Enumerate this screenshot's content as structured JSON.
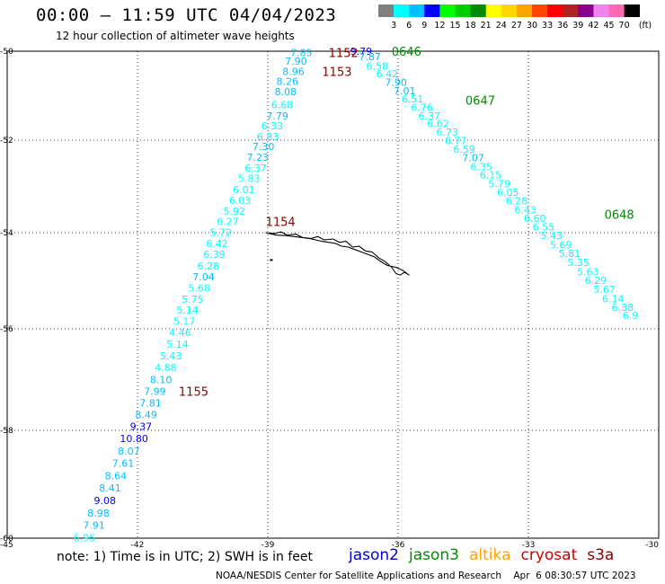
{
  "header": {
    "title": "00:00 – 11:59 UTC 04/04/2023",
    "subtitle": "12 hour collection of altimeter wave heights"
  },
  "colorbar": {
    "labels": [
      "3",
      "6",
      "9",
      "12",
      "15",
      "18",
      "21",
      "24",
      "27",
      "30",
      "33",
      "36",
      "39",
      "42",
      "45",
      "70"
    ],
    "unit": "(ft)",
    "colors": [
      "#808080",
      "#00ffff",
      "#00bfff",
      "#0000ff",
      "#00ff00",
      "#00cd00",
      "#008b00",
      "#ffff00",
      "#ffd700",
      "#ffa500",
      "#ff4500",
      "#ff0000",
      "#b22222",
      "#8b008b",
      "#ee82ee",
      "#ff69b4",
      "#000000"
    ]
  },
  "axes": {
    "lat_labels": [
      "-50",
      "-52",
      "-54",
      "-56",
      "-58",
      "-60"
    ],
    "lon_labels": [
      "-45",
      "-42",
      "-39",
      "-36",
      "-33",
      "-30"
    ]
  },
  "chart_data": {
    "type": "scatter",
    "lon_range": [
      -45,
      -30
    ],
    "lat_range": [
      -60,
      -50
    ],
    "track_west": [
      {
        "lat": -50.03,
        "lon": -38.23,
        "value": "7.85",
        "color": "#00bfff"
      },
      {
        "lat": -50.22,
        "lon": -38.35,
        "value": "7.90",
        "color": "#00bfff"
      },
      {
        "lat": -50.45,
        "lon": -38.41,
        "value": "8.96",
        "color": "#00bfff"
      },
      {
        "lat": -50.68,
        "lon": -38.55,
        "value": "8.26",
        "color": "#00bfff"
      },
      {
        "lat": -50.91,
        "lon": -38.59,
        "value": "8.08",
        "color": "#00bfff"
      },
      {
        "lat": -51.2,
        "lon": -38.67,
        "value": "6.68",
        "color": "#00ffff"
      },
      {
        "lat": -51.45,
        "lon": -38.78,
        "value": "7.79",
        "color": "#00bfff"
      },
      {
        "lat": -51.68,
        "lon": -38.9,
        "value": "6.33",
        "color": "#00ffff"
      },
      {
        "lat": -51.92,
        "lon": -39.0,
        "value": "6.83",
        "color": "#00ffff"
      },
      {
        "lat": -52.14,
        "lon": -39.1,
        "value": "7.30",
        "color": "#00bfff"
      },
      {
        "lat": -52.37,
        "lon": -39.23,
        "value": "7.23",
        "color": "#00bfff"
      },
      {
        "lat": -52.6,
        "lon": -39.28,
        "value": "6.37",
        "color": "#00ffff"
      },
      {
        "lat": -52.83,
        "lon": -39.43,
        "value": "5.83",
        "color": "#00ffff"
      },
      {
        "lat": -53.07,
        "lon": -39.55,
        "value": "6.01",
        "color": "#00ffff"
      },
      {
        "lat": -53.3,
        "lon": -39.64,
        "value": "6.03",
        "color": "#00ffff"
      },
      {
        "lat": -53.53,
        "lon": -39.77,
        "value": "5.92",
        "color": "#00ffff"
      },
      {
        "lat": -53.76,
        "lon": -39.92,
        "value": "6.27",
        "color": "#00ffff"
      },
      {
        "lat": -53.99,
        "lon": -40.08,
        "value": "5.72",
        "color": "#00ffff"
      },
      {
        "lat": -54.22,
        "lon": -40.17,
        "value": "6.42",
        "color": "#00ffff"
      },
      {
        "lat": -54.45,
        "lon": -40.23,
        "value": "6.39",
        "color": "#00ffff"
      },
      {
        "lat": -54.69,
        "lon": -40.37,
        "value": "6.28",
        "color": "#00ffff"
      },
      {
        "lat": -54.92,
        "lon": -40.48,
        "value": "7.04",
        "color": "#00bfff"
      },
      {
        "lat": -55.15,
        "lon": -40.58,
        "value": "5.68",
        "color": "#00ffff"
      },
      {
        "lat": -55.38,
        "lon": -40.73,
        "value": "5.75",
        "color": "#00ffff"
      },
      {
        "lat": -55.61,
        "lon": -40.85,
        "value": "5.14",
        "color": "#00ffff"
      },
      {
        "lat": -55.84,
        "lon": -40.92,
        "value": "5.17",
        "color": "#00ffff"
      },
      {
        "lat": -56.07,
        "lon": -41.02,
        "value": "4.46",
        "color": "#00ffff"
      },
      {
        "lat": -56.3,
        "lon": -41.08,
        "value": "5.14",
        "color": "#00ffff"
      },
      {
        "lat": -56.53,
        "lon": -41.23,
        "value": "5.43",
        "color": "#00ffff"
      },
      {
        "lat": -56.76,
        "lon": -41.35,
        "value": "4.88",
        "color": "#00ffff"
      },
      {
        "lat": -57.0,
        "lon": -41.46,
        "value": "8.10",
        "color": "#00bfff"
      },
      {
        "lat": -57.23,
        "lon": -41.6,
        "value": "7.99",
        "color": "#00bfff"
      },
      {
        "lat": -57.46,
        "lon": -41.7,
        "value": "7.81",
        "color": "#00bfff"
      },
      {
        "lat": -57.69,
        "lon": -41.8,
        "value": "8.49",
        "color": "#00bfff"
      },
      {
        "lat": -57.92,
        "lon": -41.92,
        "value": "9.37",
        "color": "#0000ff"
      },
      {
        "lat": -58.15,
        "lon": -42.08,
        "value": "10.80",
        "color": "#0000ff"
      },
      {
        "lat": -58.38,
        "lon": -42.2,
        "value": "8.07",
        "color": "#00bfff"
      },
      {
        "lat": -58.61,
        "lon": -42.33,
        "value": "7.61",
        "color": "#00bfff"
      },
      {
        "lat": -58.84,
        "lon": -42.5,
        "value": "8.64",
        "color": "#00bfff"
      },
      {
        "lat": -59.07,
        "lon": -42.63,
        "value": "8.41",
        "color": "#00bfff"
      },
      {
        "lat": -59.3,
        "lon": -42.75,
        "value": "9.08",
        "color": "#0000ff"
      },
      {
        "lat": -59.53,
        "lon": -42.9,
        "value": "8.98",
        "color": "#00bfff"
      },
      {
        "lat": -59.76,
        "lon": -43.0,
        "value": "7.91",
        "color": "#00bfff"
      },
      {
        "lat": -59.99,
        "lon": -43.22,
        "value": "6.95",
        "color": "#00ffff"
      }
    ],
    "track_east": [
      {
        "lat": -50.0,
        "lon": -36.85,
        "value": "9.79",
        "color": "#0000ff"
      },
      {
        "lat": -50.12,
        "lon": -36.65,
        "value": "7.87",
        "color": "#00bfff"
      },
      {
        "lat": -50.33,
        "lon": -36.48,
        "value": "6.58",
        "color": "#00ffff"
      },
      {
        "lat": -50.51,
        "lon": -36.25,
        "value": "6.42",
        "color": "#00ffff"
      },
      {
        "lat": -50.7,
        "lon": -36.05,
        "value": "7.90",
        "color": "#00bfff"
      },
      {
        "lat": -50.89,
        "lon": -35.85,
        "value": "7.01",
        "color": "#00bfff"
      },
      {
        "lat": -51.07,
        "lon": -35.67,
        "value": "6.51",
        "color": "#00ffff"
      },
      {
        "lat": -51.26,
        "lon": -35.45,
        "value": "6.76",
        "color": "#00ffff"
      },
      {
        "lat": -51.45,
        "lon": -35.28,
        "value": "6.37",
        "color": "#00ffff"
      },
      {
        "lat": -51.63,
        "lon": -35.08,
        "value": "6.62",
        "color": "#00ffff"
      },
      {
        "lat": -51.82,
        "lon": -34.87,
        "value": "6.73",
        "color": "#00ffff"
      },
      {
        "lat": -52.01,
        "lon": -34.67,
        "value": "6.77",
        "color": "#00ffff"
      },
      {
        "lat": -52.19,
        "lon": -34.48,
        "value": "6.59",
        "color": "#00ffff"
      },
      {
        "lat": -52.38,
        "lon": -34.27,
        "value": "7.07",
        "color": "#00bfff"
      },
      {
        "lat": -52.57,
        "lon": -34.08,
        "value": "6.35",
        "color": "#00ffff"
      },
      {
        "lat": -52.75,
        "lon": -33.87,
        "value": "6.15",
        "color": "#00ffff"
      },
      {
        "lat": -52.94,
        "lon": -33.67,
        "value": "5.79",
        "color": "#00ffff"
      },
      {
        "lat": -53.13,
        "lon": -33.47,
        "value": "6.05",
        "color": "#00ffff"
      },
      {
        "lat": -53.31,
        "lon": -33.27,
        "value": "6.28",
        "color": "#00ffff"
      },
      {
        "lat": -53.5,
        "lon": -33.07,
        "value": "6.43",
        "color": "#00ffff"
      },
      {
        "lat": -53.69,
        "lon": -32.85,
        "value": "6.60",
        "color": "#00ffff"
      },
      {
        "lat": -53.87,
        "lon": -32.65,
        "value": "6.55",
        "color": "#00ffff"
      },
      {
        "lat": -54.06,
        "lon": -32.47,
        "value": "5.43",
        "color": "#00ffff"
      },
      {
        "lat": -54.25,
        "lon": -32.25,
        "value": "5.69",
        "color": "#00ffff"
      },
      {
        "lat": -54.43,
        "lon": -32.05,
        "value": "5.81",
        "color": "#00ffff"
      },
      {
        "lat": -54.62,
        "lon": -31.85,
        "value": "5.35",
        "color": "#00ffff"
      },
      {
        "lat": -54.81,
        "lon": -31.63,
        "value": "5.63",
        "color": "#00ffff"
      },
      {
        "lat": -54.99,
        "lon": -31.45,
        "value": "6.29",
        "color": "#00ffff"
      },
      {
        "lat": -55.18,
        "lon": -31.25,
        "value": "5.67",
        "color": "#00ffff"
      },
      {
        "lat": -55.37,
        "lon": -31.05,
        "value": "6.14",
        "color": "#00ffff"
      },
      {
        "lat": -55.55,
        "lon": -30.83,
        "value": "6.38",
        "color": "#00ffff"
      },
      {
        "lat": -55.72,
        "lon": -30.65,
        "value": "6.9",
        "color": "#00ffff"
      }
    ],
    "time_labels": [
      {
        "lat": -50.03,
        "lon": -37.6,
        "text": "1152",
        "color": "#8b0000"
      },
      {
        "lat": -50.45,
        "lon": -37.75,
        "text": "1153",
        "color": "#8b0000"
      },
      {
        "lat": -53.76,
        "lon": -39.05,
        "text": "1154",
        "color": "#8b0000"
      },
      {
        "lat": -57.23,
        "lon": -41.05,
        "text": "1155",
        "color": "#8b0000"
      },
      {
        "lat": -50.0,
        "lon": -36.15,
        "text": "0646",
        "color": "#008b00"
      },
      {
        "lat": -51.1,
        "lon": -34.45,
        "text": "0647",
        "color": "#008b00"
      },
      {
        "lat": -53.6,
        "lon": -31.25,
        "text": "0648",
        "color": "#008b00"
      }
    ],
    "coastline": [
      [
        -39.05,
        -54.0
      ],
      [
        -38.85,
        -54.02
      ],
      [
        -38.7,
        -53.98
      ],
      [
        -38.55,
        -54.05
      ],
      [
        -38.35,
        -54.03
      ],
      [
        -38.2,
        -54.1
      ],
      [
        -38.0,
        -54.12
      ],
      [
        -37.85,
        -54.08
      ],
      [
        -37.7,
        -54.15
      ],
      [
        -37.5,
        -54.13
      ],
      [
        -37.35,
        -54.2
      ],
      [
        -37.2,
        -54.18
      ],
      [
        -37.05,
        -54.3
      ],
      [
        -36.9,
        -54.28
      ],
      [
        -36.75,
        -54.38
      ],
      [
        -36.6,
        -54.4
      ],
      [
        -36.45,
        -54.52
      ],
      [
        -36.3,
        -54.6
      ],
      [
        -36.15,
        -54.72
      ],
      [
        -36.05,
        -54.85
      ],
      [
        -35.95,
        -54.88
      ],
      [
        -35.85,
        -54.82
      ],
      [
        -35.75,
        -54.88
      ],
      [
        -35.9,
        -54.78
      ],
      [
        -36.05,
        -54.72
      ],
      [
        -36.25,
        -54.68
      ],
      [
        -36.4,
        -54.6
      ],
      [
        -36.55,
        -54.5
      ],
      [
        -36.7,
        -54.45
      ],
      [
        -36.85,
        -54.4
      ],
      [
        -37.0,
        -54.35
      ],
      [
        -37.15,
        -54.3
      ],
      [
        -37.3,
        -54.28
      ],
      [
        -37.45,
        -54.22
      ],
      [
        -37.6,
        -54.2
      ],
      [
        -37.75,
        -54.18
      ],
      [
        -37.9,
        -54.15
      ],
      [
        -38.05,
        -54.12
      ],
      [
        -38.2,
        -54.1
      ],
      [
        -38.4,
        -54.08
      ],
      [
        -38.6,
        -54.06
      ],
      [
        -38.8,
        -54.05
      ],
      [
        -39.05,
        -54.0
      ]
    ]
  },
  "footer": {
    "note": "note:  1) Time is in UTC;  2) SWH is in feet",
    "legend": [
      {
        "text": "jason2",
        "color": "#0000cd"
      },
      {
        "text": "jason3",
        "color": "#008b00"
      },
      {
        "text": "altika",
        "color": "#ffa500"
      },
      {
        "text": "cryosat",
        "color": "#cc0000"
      },
      {
        "text": "s3a",
        "color": "#8b0000"
      }
    ],
    "credit": "NOAA/NESDIS Center for Satellite Applications and Research    Apr  6 08:30:57 UTC 2023"
  }
}
